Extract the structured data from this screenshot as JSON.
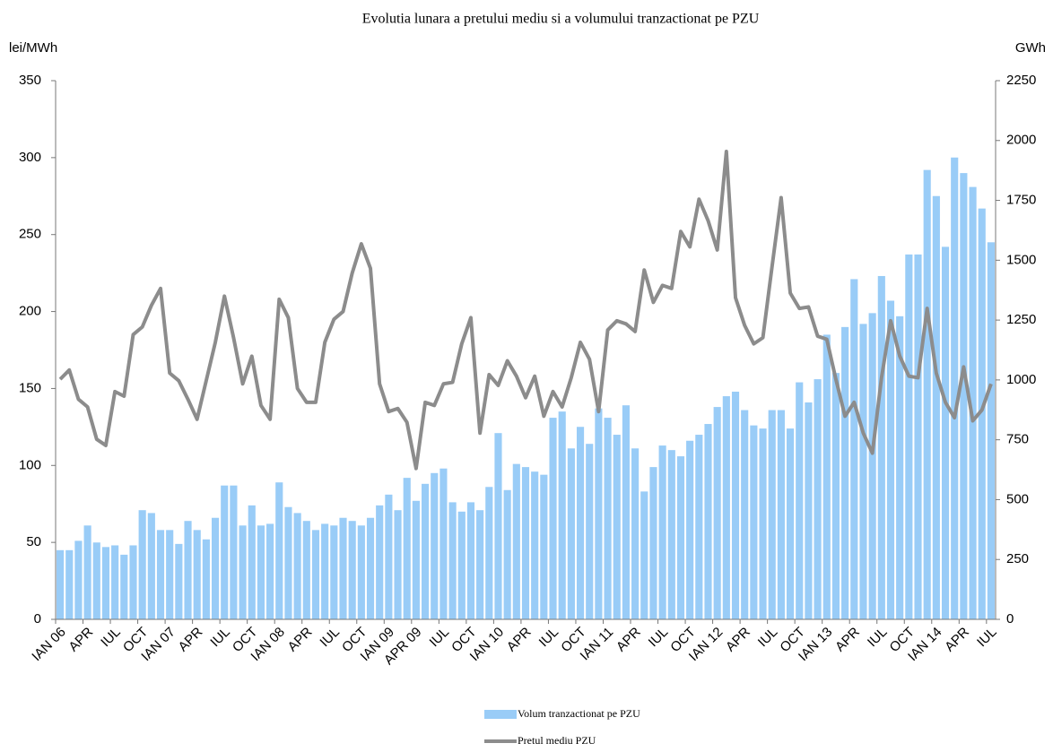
{
  "chart_data": {
    "type": "combo",
    "title": "Evolutia lunara a pretului mediu si a volumului tranzactionat pe PZU",
    "ylabel": "lei/MWh",
    "y2label": "GWh",
    "categories": [
      "IAN 06",
      null,
      null,
      "APR",
      null,
      null,
      "IUL",
      null,
      null,
      "OCT",
      null,
      null,
      "IAN 07",
      null,
      null,
      "APR",
      null,
      null,
      "IUL",
      null,
      null,
      "OCT",
      null,
      null,
      "IAN 08",
      null,
      null,
      "APR",
      null,
      null,
      "IUL",
      null,
      null,
      "OCT",
      null,
      null,
      "IAN 09",
      null,
      null,
      "APR 09",
      null,
      null,
      "IUL",
      null,
      null,
      "OCT",
      null,
      null,
      "IAN 10",
      null,
      null,
      "APR",
      null,
      null,
      "IUL",
      null,
      null,
      "OCT",
      null,
      null,
      "IAN 11",
      null,
      null,
      "APR",
      null,
      null,
      "IUL",
      null,
      null,
      "OCT",
      null,
      null,
      "IAN 12",
      null,
      null,
      "APR",
      null,
      null,
      "IUL",
      null,
      null,
      "OCT",
      null,
      null,
      "IAN 13",
      null,
      null,
      "APR",
      null,
      null,
      "IUL",
      null,
      null,
      "OCT",
      null,
      null,
      "IAN 14",
      null,
      null,
      "APR",
      null,
      null,
      "IUL"
    ],
    "series": [
      {
        "name": "Volum tranzactionat pe PZU",
        "type": "bar",
        "axis": "y2",
        "color": "#99ccf7",
        "values": [
          289,
          289,
          328,
          392,
          321,
          302,
          309,
          270,
          309,
          456,
          444,
          373,
          373,
          315,
          411,
          373,
          334,
          424,
          559,
          559,
          392,
          476,
          392,
          399,
          572,
          469,
          444,
          411,
          373,
          399,
          392,
          424,
          411,
          392,
          424,
          476,
          521,
          456,
          591,
          495,
          566,
          611,
          630,
          489,
          450,
          489,
          456,
          553,
          778,
          540,
          649,
          636,
          617,
          604,
          842,
          868,
          714,
          804,
          733,
          881,
          842,
          771,
          894,
          714,
          534,
          636,
          726,
          707,
          681,
          746,
          771,
          816,
          887,
          932,
          951,
          874,
          810,
          797,
          874,
          874,
          797,
          990,
          906,
          1003,
          1189,
          1029,
          1221,
          1421,
          1234,
          1279,
          1434,
          1331,
          1266,
          1524,
          1524,
          1877,
          1768,
          1556,
          1929,
          1864,
          1806,
          1716,
          1575
        ]
      },
      {
        "name": "Pretul mediu PZU",
        "type": "line",
        "color": "#8c8c8c",
        "values": [
          156,
          162,
          143,
          138,
          117,
          113,
          148,
          145,
          185,
          190,
          204,
          215,
          160,
          155,
          143,
          130,
          155,
          180,
          210,
          183,
          153,
          171,
          139,
          130,
          208,
          196,
          150,
          141,
          141,
          180,
          195,
          200,
          225,
          244,
          228,
          153,
          135,
          137,
          128,
          98,
          141,
          139,
          153,
          154,
          179,
          196,
          121,
          159,
          152,
          168,
          158,
          144,
          158,
          132,
          148,
          138,
          157,
          180,
          169,
          135,
          188,
          194,
          192,
          187,
          227,
          206,
          217,
          215,
          252,
          242,
          273,
          259,
          240,
          304,
          209,
          191,
          179,
          183,
          229,
          274,
          212,
          202,
          203,
          184,
          182,
          156,
          132,
          141,
          121,
          108,
          157,
          194,
          171,
          158,
          157,
          202,
          160,
          141,
          131,
          164,
          129,
          136,
          153
        ]
      }
    ],
    "ylim": [
      0,
      350
    ],
    "yticks": [
      0,
      50,
      100,
      150,
      200,
      250,
      300,
      350
    ],
    "y2lim": [
      0,
      2250
    ],
    "y2ticks": [
      0,
      250,
      500,
      750,
      1000,
      1250,
      1500,
      1750,
      2000,
      2250
    ],
    "grid": false
  }
}
